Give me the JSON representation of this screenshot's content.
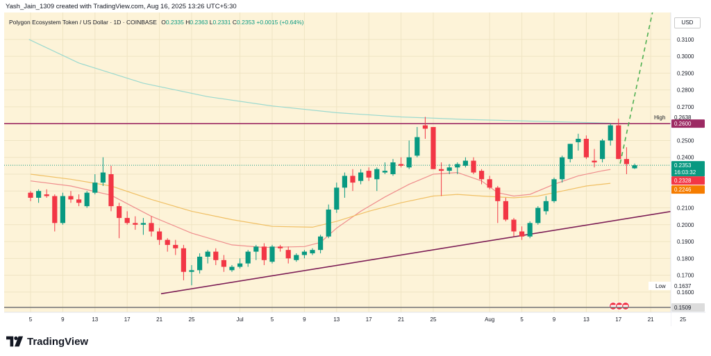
{
  "header": {
    "credit": "Yash_Jain_1309 created with TradingView.com, Aug 16, 2025 13:26 UTC+5:30"
  },
  "legend": {
    "symbol": "Polygon Ecosystem Token / US Dollar · 1D · COINBASE",
    "open_label": "O",
    "open": "0.2335",
    "high_label": "H",
    "high": "0.2363",
    "low_label": "L",
    "low": "0.2331",
    "close_label": "C",
    "close": "0.2353",
    "change": "+0.0015 (+0.64%)"
  },
  "axis": {
    "currency": "USD"
  },
  "brand": {
    "name": "TradingView"
  },
  "colors": {
    "bull": "#089981",
    "bear": "#f23645",
    "background": "#fdf3d8",
    "resistance": "#9c2a63",
    "support": "#7c1d55",
    "ema_fast": "#ef8c8c",
    "ema_slow": "#f0bf63",
    "ma_long": "#9ad9cf",
    "projection": "#4caf50"
  },
  "chart_data": {
    "type": "candlestick",
    "timeframe": "1D",
    "y_axis": {
      "range": [
        0.148,
        0.326
      ],
      "ticks": [
        "0.1600",
        "0.1700",
        "0.1800",
        "0.1900",
        "0.2000",
        "0.2100",
        "0.2200",
        "0.2300",
        "0.2400",
        "0.2500",
        "0.2600",
        "0.2700",
        "0.2800",
        "0.2900",
        "0.3000",
        "0.3100"
      ]
    },
    "x_axis": {
      "ticks": [
        {
          "i": 0,
          "label": "5"
        },
        {
          "i": 4,
          "label": "9"
        },
        {
          "i": 8,
          "label": "13"
        },
        {
          "i": 12,
          "label": "17"
        },
        {
          "i": 16,
          "label": "21"
        },
        {
          "i": 20,
          "label": "25"
        },
        {
          "i": 26,
          "label": "Jul"
        },
        {
          "i": 30,
          "label": "5"
        },
        {
          "i": 34,
          "label": "9"
        },
        {
          "i": 38,
          "label": "13"
        },
        {
          "i": 42,
          "label": "17"
        },
        {
          "i": 46,
          "label": "21"
        },
        {
          "i": 50,
          "label": "25"
        },
        {
          "i": 57,
          "label": "Aug"
        },
        {
          "i": 61,
          "label": "5"
        },
        {
          "i": 65,
          "label": "9"
        },
        {
          "i": 69,
          "label": "13"
        },
        {
          "i": 73,
          "label": "17"
        },
        {
          "i": 77,
          "label": "21"
        },
        {
          "i": 81,
          "label": "25"
        }
      ]
    },
    "candles": [
      [
        0.219,
        0.22,
        0.214,
        0.216
      ],
      [
        0.216,
        0.221,
        0.213,
        0.22
      ],
      [
        0.218,
        0.221,
        0.216,
        0.217
      ],
      [
        0.217,
        0.218,
        0.196,
        0.201
      ],
      [
        0.201,
        0.219,
        0.2,
        0.217
      ],
      [
        0.217,
        0.22,
        0.213,
        0.215
      ],
      [
        0.215,
        0.218,
        0.211,
        0.213
      ],
      [
        0.211,
        0.22,
        0.21,
        0.219
      ],
      [
        0.219,
        0.23,
        0.218,
        0.225
      ],
      [
        0.225,
        0.24,
        0.223,
        0.231
      ],
      [
        0.23,
        0.235,
        0.208,
        0.211
      ],
      [
        0.211,
        0.213,
        0.192,
        0.204
      ],
      [
        0.204,
        0.208,
        0.2,
        0.201
      ],
      [
        0.201,
        0.205,
        0.197,
        0.2
      ],
      [
        0.2,
        0.204,
        0.194,
        0.201
      ],
      [
        0.201,
        0.205,
        0.193,
        0.196
      ],
      [
        0.196,
        0.198,
        0.188,
        0.191
      ],
      [
        0.191,
        0.192,
        0.184,
        0.188
      ],
      [
        0.188,
        0.191,
        0.182,
        0.186
      ],
      [
        0.186,
        0.188,
        0.167,
        0.172
      ],
      [
        0.172,
        0.176,
        0.164,
        0.173
      ],
      [
        0.173,
        0.183,
        0.171,
        0.181
      ],
      [
        0.181,
        0.185,
        0.177,
        0.184
      ],
      [
        0.184,
        0.186,
        0.176,
        0.179
      ],
      [
        0.179,
        0.182,
        0.172,
        0.175
      ],
      [
        0.173,
        0.176,
        0.172,
        0.175
      ],
      [
        0.175,
        0.18,
        0.174,
        0.177
      ],
      [
        0.177,
        0.185,
        0.175,
        0.184
      ],
      [
        0.184,
        0.188,
        0.179,
        0.187
      ],
      [
        0.187,
        0.189,
        0.176,
        0.179
      ],
      [
        0.178,
        0.188,
        0.177,
        0.187
      ],
      [
        0.187,
        0.188,
        0.184,
        0.186
      ],
      [
        0.185,
        0.187,
        0.177,
        0.18
      ],
      [
        0.179,
        0.183,
        0.178,
        0.182
      ],
      [
        0.182,
        0.185,
        0.18,
        0.184
      ],
      [
        0.183,
        0.186,
        0.182,
        0.185
      ],
      [
        0.185,
        0.194,
        0.183,
        0.193
      ],
      [
        0.193,
        0.212,
        0.192,
        0.209
      ],
      [
        0.209,
        0.225,
        0.207,
        0.222
      ],
      [
        0.222,
        0.231,
        0.216,
        0.229
      ],
      [
        0.229,
        0.233,
        0.22,
        0.225
      ],
      [
        0.226,
        0.233,
        0.224,
        0.231
      ],
      [
        0.232,
        0.234,
        0.226,
        0.228
      ],
      [
        0.227,
        0.234,
        0.22,
        0.233
      ],
      [
        0.231,
        0.237,
        0.23,
        0.232
      ],
      [
        0.23,
        0.239,
        0.229,
        0.237
      ],
      [
        0.236,
        0.24,
        0.234,
        0.235
      ],
      [
        0.234,
        0.25,
        0.233,
        0.24
      ],
      [
        0.241,
        0.258,
        0.24,
        0.252
      ],
      [
        0.259,
        0.264,
        0.251,
        0.257
      ],
      [
        0.258,
        0.258,
        0.233,
        0.233
      ],
      [
        0.233,
        0.237,
        0.217,
        0.232
      ],
      [
        0.232,
        0.236,
        0.23,
        0.234
      ],
      [
        0.234,
        0.237,
        0.23,
        0.236
      ],
      [
        0.235,
        0.24,
        0.234,
        0.238
      ],
      [
        0.238,
        0.24,
        0.23,
        0.231
      ],
      [
        0.232,
        0.233,
        0.224,
        0.227
      ],
      [
        0.227,
        0.229,
        0.221,
        0.222
      ],
      [
        0.222,
        0.223,
        0.201,
        0.214
      ],
      [
        0.214,
        0.216,
        0.202,
        0.203
      ],
      [
        0.203,
        0.204,
        0.193,
        0.196
      ],
      [
        0.196,
        0.199,
        0.191,
        0.193
      ],
      [
        0.193,
        0.202,
        0.192,
        0.201
      ],
      [
        0.201,
        0.211,
        0.2,
        0.21
      ],
      [
        0.208,
        0.217,
        0.206,
        0.214
      ],
      [
        0.214,
        0.228,
        0.213,
        0.227
      ],
      [
        0.227,
        0.241,
        0.225,
        0.24
      ],
      [
        0.239,
        0.248,
        0.237,
        0.248
      ],
      [
        0.249,
        0.254,
        0.244,
        0.251
      ],
      [
        0.251,
        0.253,
        0.239,
        0.24
      ],
      [
        0.238,
        0.245,
        0.234,
        0.237
      ],
      [
        0.239,
        0.251,
        0.237,
        0.25
      ],
      [
        0.25,
        0.26,
        0.247,
        0.259
      ],
      [
        0.259,
        0.263,
        0.239,
        0.239
      ],
      [
        0.239,
        0.246,
        0.23,
        0.236
      ],
      [
        0.2335,
        0.2363,
        0.2331,
        0.2353
      ]
    ],
    "series": [
      {
        "kind": "moving-average",
        "color": "#ef8c8c",
        "points": [
          [
            0,
            0.226
          ],
          [
            5,
            0.223
          ],
          [
            10,
            0.2175
          ],
          [
            15,
            0.205
          ],
          [
            20,
            0.195
          ],
          [
            25,
            0.188
          ],
          [
            29,
            0.1865
          ],
          [
            34,
            0.187
          ],
          [
            36,
            0.1895
          ],
          [
            38,
            0.198
          ],
          [
            41,
            0.208
          ],
          [
            44,
            0.2165
          ],
          [
            47,
            0.224
          ],
          [
            50,
            0.23
          ],
          [
            53,
            0.231
          ],
          [
            56,
            0.226
          ],
          [
            58,
            0.219
          ],
          [
            60,
            0.217
          ],
          [
            62,
            0.218
          ],
          [
            65,
            0.224
          ],
          [
            68,
            0.229
          ],
          [
            71,
            0.232
          ],
          [
            72,
            0.2328
          ]
        ]
      },
      {
        "kind": "moving-average",
        "color": "#f0bf63",
        "points": [
          [
            0,
            0.23
          ],
          [
            5,
            0.227
          ],
          [
            10,
            0.223
          ],
          [
            15,
            0.215
          ],
          [
            20,
            0.208
          ],
          [
            25,
            0.203
          ],
          [
            30,
            0.199
          ],
          [
            35,
            0.1985
          ],
          [
            38,
            0.202
          ],
          [
            42,
            0.208
          ],
          [
            46,
            0.213
          ],
          [
            50,
            0.217
          ],
          [
            53,
            0.218
          ],
          [
            56,
            0.217
          ],
          [
            60,
            0.216
          ],
          [
            63,
            0.217
          ],
          [
            66,
            0.22
          ],
          [
            69,
            0.223
          ],
          [
            72,
            0.2246
          ]
        ]
      },
      {
        "kind": "moving-average",
        "color": "#9ad9cf",
        "points": [
          [
            -0.2,
            0.31
          ],
          [
            6,
            0.296
          ],
          [
            14,
            0.284
          ],
          [
            22,
            0.276
          ],
          [
            30,
            0.2705
          ],
          [
            38,
            0.2665
          ],
          [
            46,
            0.264
          ],
          [
            54,
            0.2625
          ],
          [
            62,
            0.2615
          ],
          [
            68,
            0.2608
          ],
          [
            72,
            0.2603
          ]
        ]
      }
    ],
    "lines": [
      {
        "name": "",
        "kind": "horizontal-resistance",
        "value": 0.26
      },
      {
        "name": "",
        "kind": "rising-support",
        "from": [
          16.2,
          0.159
        ],
        "to": [
          83.6,
          0.211
        ]
      },
      {
        "name": "",
        "kind": "projection",
        "from": [
          73.2,
          0.2363
        ],
        "to": [
          77.3,
          0.328
        ]
      }
    ],
    "price_labels": {
      "high_label": "High",
      "high_value": "0.2638",
      "resistance_value": "0.2600",
      "last_price": "0.2353",
      "countdown": "16:03:32",
      "ema_fast_value": "0.2328",
      "ema_slow_value": "0.2246",
      "low_label": "Low",
      "low_value": "0.1637",
      "bottom_value": "0.1509"
    }
  }
}
